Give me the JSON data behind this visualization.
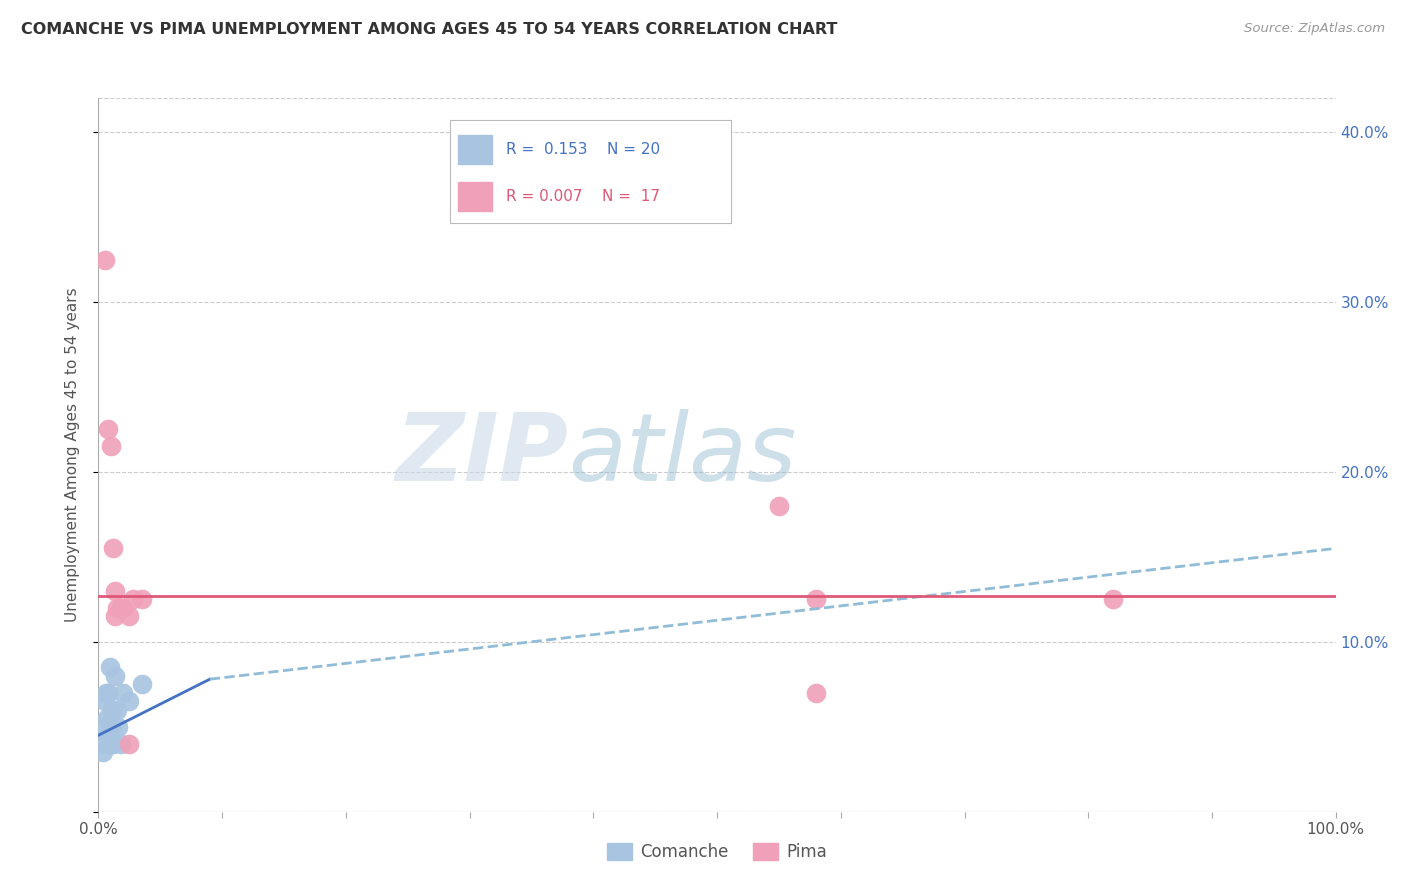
{
  "title": "COMANCHE VS PIMA UNEMPLOYMENT AMONG AGES 45 TO 54 YEARS CORRELATION CHART",
  "source": "Source: ZipAtlas.com",
  "ylabel": "Unemployment Among Ages 45 to 54 years",
  "xlim": [
    0,
    1.0
  ],
  "ylim": [
    0,
    0.42
  ],
  "xticks": [
    0.0,
    0.1,
    0.2,
    0.3,
    0.4,
    0.5,
    0.6,
    0.7,
    0.8,
    0.9,
    1.0
  ],
  "xticklabels": [
    "0.0%",
    "",
    "",
    "",
    "",
    "",
    "",
    "",
    "",
    "",
    "100.0%"
  ],
  "yticks": [
    0.0,
    0.1,
    0.2,
    0.3,
    0.4
  ],
  "yticklabels_right": [
    "",
    "10.0%",
    "20.0%",
    "30.0%",
    "40.0%"
  ],
  "comanche_color": "#a8c4e0",
  "pima_color": "#f0a0b8",
  "comanche_line_color": "#4472c4",
  "pima_line_color": "#e05878",
  "trendline_dashed_color": "#90bcd8",
  "comanche_x": [
    0.001,
    0.003,
    0.004,
    0.005,
    0.006,
    0.007,
    0.008,
    0.008,
    0.009,
    0.01,
    0.01,
    0.011,
    0.012,
    0.013,
    0.015,
    0.016,
    0.018,
    0.02,
    0.025,
    0.035
  ],
  "comanche_y": [
    0.04,
    0.05,
    0.035,
    0.065,
    0.07,
    0.055,
    0.045,
    0.07,
    0.085,
    0.04,
    0.05,
    0.06,
    0.04,
    0.08,
    0.06,
    0.05,
    0.04,
    0.07,
    0.065,
    0.075
  ],
  "pima_x": [
    0.005,
    0.008,
    0.01,
    0.012,
    0.013,
    0.013,
    0.015,
    0.018,
    0.02,
    0.025,
    0.025,
    0.028,
    0.035,
    0.55,
    0.58,
    0.58,
    0.82
  ],
  "pima_y": [
    0.325,
    0.225,
    0.215,
    0.155,
    0.13,
    0.115,
    0.12,
    0.12,
    0.12,
    0.115,
    0.04,
    0.125,
    0.125,
    0.18,
    0.125,
    0.07,
    0.125
  ],
  "comanche_trendline_x0": 0.0,
  "comanche_trendline_y0": 0.045,
  "comanche_trendline_x1": 0.09,
  "comanche_trendline_y1": 0.078,
  "comanche_trendline_xend": 1.0,
  "comanche_trendline_yend": 0.155,
  "pima_trendline_y": 0.127,
  "grid_color": "#cccccc",
  "background_color": "#ffffff"
}
